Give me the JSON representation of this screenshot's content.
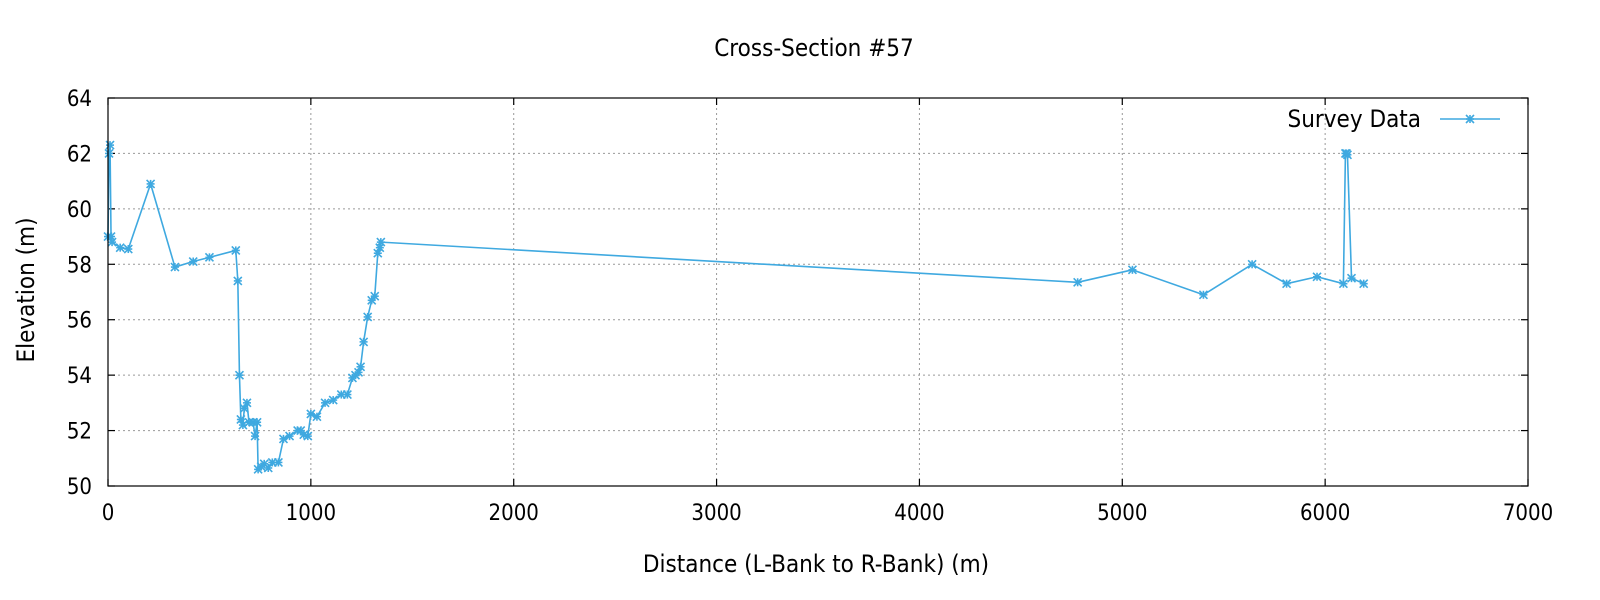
{
  "chart_data": {
    "type": "line",
    "title": "Cross-Section #57",
    "xlabel": "Distance (L-Bank to R-Bank) (m)",
    "ylabel": "Elevation (m)",
    "xlim": [
      0,
      7000
    ],
    "ylim": [
      50,
      64
    ],
    "xticks": [
      0,
      1000,
      2000,
      3000,
      4000,
      5000,
      6000,
      7000
    ],
    "yticks": [
      50,
      52,
      54,
      56,
      58,
      60,
      62,
      64
    ],
    "grid": true,
    "legend_position": "top-right",
    "series": [
      {
        "name": "Survey Data",
        "color": "#3fa9e0",
        "marker": "asterisk",
        "x": [
          0,
          5,
          10,
          15,
          20,
          60,
          100,
          210,
          330,
          420,
          500,
          630,
          640,
          648,
          655,
          665,
          672,
          685,
          695,
          715,
          725,
          735,
          740,
          755,
          770,
          790,
          810,
          840,
          865,
          895,
          935,
          950,
          965,
          985,
          1000,
          1030,
          1070,
          1110,
          1150,
          1180,
          1205,
          1220,
          1235,
          1245,
          1260,
          1280,
          1300,
          1315,
          1330,
          1340,
          1345,
          4780,
          5050,
          5400,
          5640,
          5810,
          5960,
          6090,
          6100,
          6105,
          6110,
          6130,
          6190
        ],
        "y": [
          59.0,
          62.0,
          62.3,
          59.0,
          58.8,
          58.6,
          58.55,
          60.9,
          57.9,
          58.1,
          58.25,
          58.5,
          57.4,
          54.0,
          52.4,
          52.2,
          52.8,
          53.0,
          52.3,
          52.3,
          51.8,
          52.3,
          50.6,
          50.7,
          50.8,
          50.65,
          50.85,
          50.85,
          51.7,
          51.8,
          52.0,
          52.0,
          51.85,
          51.8,
          52.6,
          52.5,
          53.0,
          53.1,
          53.3,
          53.3,
          53.9,
          54.0,
          54.1,
          54.3,
          55.2,
          56.1,
          56.7,
          56.85,
          58.4,
          58.6,
          58.8,
          57.35,
          57.8,
          56.9,
          58.0,
          57.3,
          57.55,
          57.3,
          62.0,
          62.0,
          61.95,
          57.5,
          57.3
        ]
      }
    ]
  }
}
